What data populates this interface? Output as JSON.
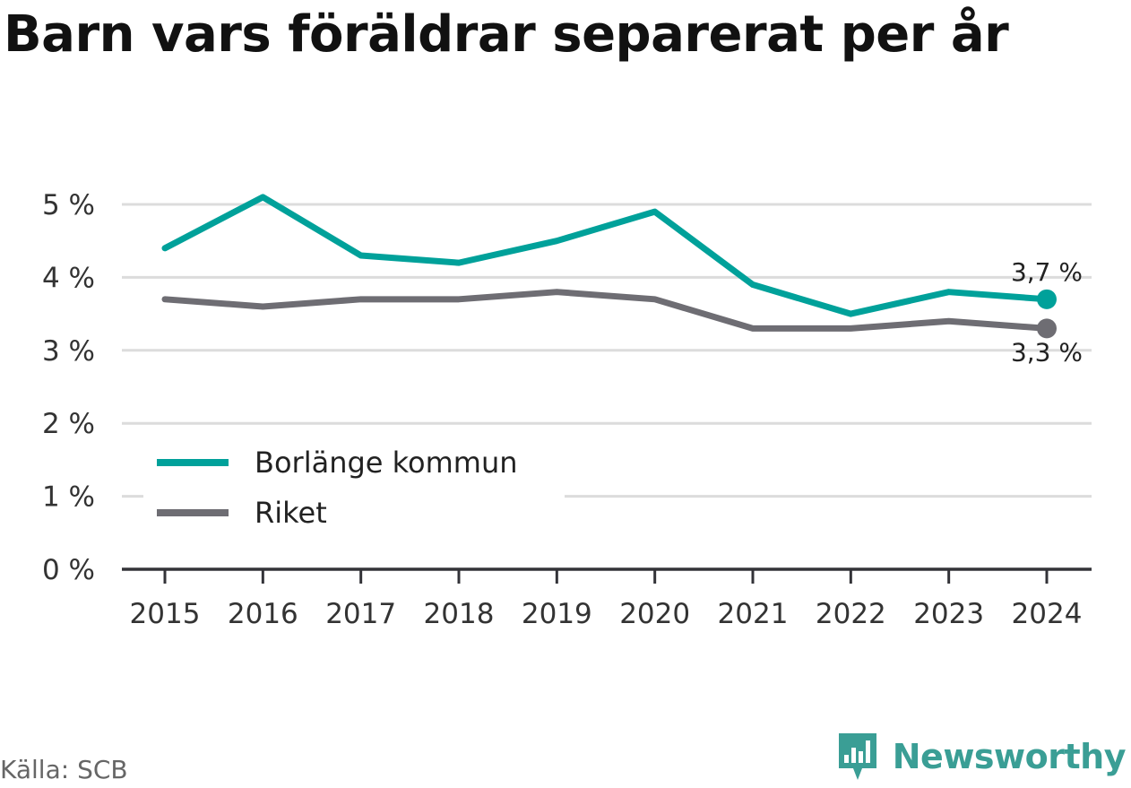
{
  "title": "Barn vars föräldrar separerat per år",
  "source": "Källa: SCB",
  "brand": {
    "name": "Newsworthy",
    "icon": "newsworthy-logo-icon",
    "color": "#3a9e95"
  },
  "chart_data": {
    "type": "line",
    "x": [
      "2015",
      "2016",
      "2017",
      "2018",
      "2019",
      "2020",
      "2021",
      "2022",
      "2023",
      "2024"
    ],
    "y_tick_values": [
      0,
      1,
      2,
      3,
      4,
      5
    ],
    "y_tick_labels": [
      "0 %",
      "1 %",
      "2 %",
      "3 %",
      "4 %",
      "5 %"
    ],
    "ylim": [
      0,
      5.3
    ],
    "grid": true,
    "legend_position": "bottom-left",
    "series": [
      {
        "name": "Borlänge kommun",
        "color": "#00a19a",
        "values": [
          4.4,
          5.1,
          4.3,
          4.2,
          4.5,
          4.9,
          3.9,
          3.5,
          3.8,
          3.7
        ],
        "end_label": "3,7 %"
      },
      {
        "name": "Riket",
        "color": "#6e6d73",
        "values": [
          3.7,
          3.6,
          3.7,
          3.7,
          3.8,
          3.7,
          3.3,
          3.3,
          3.4,
          3.3
        ],
        "end_label": "3,3 %"
      }
    ]
  }
}
